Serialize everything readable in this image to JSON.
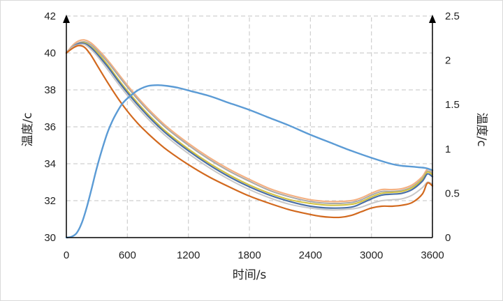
{
  "chart_data": {
    "type": "line",
    "title": "",
    "xlabel": "时间/s",
    "ylabel_left": "温度/c",
    "ylabel_right": "温度/c",
    "xlim": [
      0,
      3600
    ],
    "ylim_left": [
      30,
      42
    ],
    "ylim_right": [
      0,
      2.5
    ],
    "x_ticks": [
      0,
      600,
      1200,
      1800,
      2400,
      3000,
      3600
    ],
    "y_left_ticks": [
      30,
      32,
      34,
      36,
      38,
      40,
      42
    ],
    "y_right_ticks": [
      0,
      0.5,
      1,
      1.5,
      2,
      2.5
    ],
    "x_tick_labels": [
      "0",
      "600",
      "1200",
      "1800",
      "2400",
      "3000",
      "3600"
    ],
    "y_left_tick_labels": [
      "30",
      "32",
      "34",
      "36",
      "38",
      "40",
      "42"
    ],
    "y_right_tick_labels": [
      "0",
      "0.5",
      "1",
      "1.5",
      "2",
      "2.5"
    ],
    "grid": true,
    "grid_style": "dashed",
    "legend": false,
    "series": [
      {
        "axis": "left",
        "color": "#f4b183",
        "width": 2.2,
        "x": [
          0,
          60,
          120,
          180,
          240,
          300,
          400,
          500,
          600,
          700,
          800,
          900,
          1000,
          1200,
          1400,
          1600,
          1800,
          2000,
          2200,
          2400,
          2600,
          2800,
          2900,
          3000,
          3100,
          3200,
          3300,
          3400,
          3500,
          3550,
          3600
        ],
        "y": [
          40.0,
          40.4,
          40.65,
          40.7,
          40.55,
          40.25,
          39.65,
          38.95,
          38.25,
          37.6,
          37.0,
          36.45,
          35.95,
          35.1,
          34.35,
          33.7,
          33.15,
          32.65,
          32.3,
          32.05,
          31.95,
          32.0,
          32.15,
          32.4,
          32.6,
          32.6,
          32.65,
          32.85,
          33.3,
          33.7,
          33.6
        ]
      },
      {
        "axis": "left",
        "color": "#a9a9a9",
        "width": 2.0,
        "x": [
          0,
          60,
          120,
          180,
          240,
          300,
          400,
          500,
          600,
          700,
          800,
          900,
          1000,
          1200,
          1400,
          1600,
          1800,
          2000,
          2200,
          2400,
          2600,
          2800,
          2900,
          3000,
          3100,
          3200,
          3300,
          3400,
          3500,
          3550,
          3600
        ],
        "y": [
          40.0,
          40.35,
          40.55,
          40.6,
          40.45,
          40.15,
          39.55,
          38.85,
          38.15,
          37.5,
          36.9,
          36.35,
          35.85,
          35.0,
          34.25,
          33.6,
          33.05,
          32.55,
          32.2,
          31.95,
          31.85,
          31.9,
          32.05,
          32.3,
          32.5,
          32.5,
          32.55,
          32.75,
          33.2,
          33.6,
          33.5
        ]
      },
      {
        "axis": "left",
        "color": "#d4c23c",
        "width": 2.0,
        "x": [
          0,
          60,
          120,
          180,
          240,
          300,
          400,
          500,
          600,
          700,
          800,
          900,
          1000,
          1200,
          1400,
          1600,
          1800,
          2000,
          2200,
          2400,
          2600,
          2800,
          2900,
          3000,
          3100,
          3200,
          3300,
          3400,
          3500,
          3550,
          3600
        ],
        "y": [
          40.0,
          40.3,
          40.5,
          40.55,
          40.35,
          40.05,
          39.4,
          38.65,
          37.95,
          37.3,
          36.7,
          36.15,
          35.65,
          34.8,
          34.05,
          33.4,
          32.85,
          32.4,
          32.05,
          31.85,
          31.75,
          31.8,
          31.95,
          32.2,
          32.4,
          32.45,
          32.5,
          32.7,
          33.15,
          33.55,
          33.4
        ]
      },
      {
        "axis": "left",
        "color": "#4a6fa5",
        "width": 2.2,
        "x": [
          0,
          60,
          120,
          180,
          240,
          300,
          400,
          500,
          600,
          700,
          800,
          900,
          1000,
          1200,
          1400,
          1600,
          1800,
          2000,
          2200,
          2400,
          2600,
          2800,
          2900,
          3000,
          3100,
          3200,
          3300,
          3400,
          3500,
          3550,
          3600
        ],
        "y": [
          40.0,
          40.3,
          40.5,
          40.5,
          40.3,
          39.95,
          39.3,
          38.55,
          37.85,
          37.2,
          36.6,
          36.05,
          35.55,
          34.7,
          33.95,
          33.3,
          32.75,
          32.3,
          31.95,
          31.7,
          31.6,
          31.65,
          31.85,
          32.1,
          32.3,
          32.35,
          32.4,
          32.6,
          33.05,
          33.45,
          33.3
        ]
      },
      {
        "axis": "left",
        "color": "#c8c8c8",
        "width": 2.0,
        "x": [
          0,
          60,
          120,
          180,
          240,
          300,
          400,
          500,
          600,
          700,
          800,
          900,
          1000,
          1200,
          1400,
          1600,
          1800,
          2000,
          2200,
          2400,
          2600,
          2800,
          2900,
          3000,
          3100,
          3200,
          3300,
          3400,
          3500,
          3550,
          3600
        ],
        "y": [
          40.0,
          40.3,
          40.45,
          40.45,
          40.2,
          39.85,
          39.15,
          38.4,
          37.7,
          37.05,
          36.45,
          35.9,
          35.4,
          34.55,
          33.8,
          33.15,
          32.6,
          32.15,
          31.8,
          31.6,
          31.5,
          31.55,
          31.65,
          31.85,
          32.0,
          32.05,
          32.1,
          32.3,
          32.7,
          33.0,
          32.9
        ]
      },
      {
        "axis": "left",
        "color": "#d2691e",
        "width": 2.2,
        "x": [
          0,
          60,
          120,
          180,
          240,
          300,
          400,
          500,
          600,
          700,
          800,
          900,
          1000,
          1200,
          1400,
          1600,
          1800,
          2000,
          2200,
          2400,
          2500,
          2600,
          2700,
          2800,
          2900,
          3000,
          3100,
          3200,
          3300,
          3400,
          3500,
          3550,
          3600
        ],
        "y": [
          40.0,
          40.25,
          40.4,
          40.3,
          39.9,
          39.35,
          38.45,
          37.6,
          36.85,
          36.2,
          35.65,
          35.15,
          34.7,
          33.95,
          33.3,
          32.75,
          32.25,
          31.85,
          31.5,
          31.25,
          31.15,
          31.1,
          31.1,
          31.2,
          31.4,
          31.6,
          31.7,
          31.7,
          31.75,
          31.9,
          32.35,
          32.95,
          32.8
        ]
      },
      {
        "axis": "right",
        "color": "#5b9bd5",
        "width": 2.4,
        "x": [
          0,
          50,
          100,
          150,
          200,
          250,
          300,
          350,
          400,
          450,
          500,
          550,
          600,
          700,
          800,
          900,
          1000,
          1100,
          1200,
          1400,
          1600,
          1800,
          2000,
          2200,
          2400,
          2600,
          2800,
          3000,
          3200,
          3300,
          3400,
          3500,
          3550,
          3600
        ],
        "y": [
          0.0,
          0.01,
          0.05,
          0.16,
          0.34,
          0.56,
          0.79,
          0.99,
          1.17,
          1.31,
          1.42,
          1.51,
          1.57,
          1.66,
          1.71,
          1.72,
          1.71,
          1.69,
          1.66,
          1.6,
          1.52,
          1.44,
          1.35,
          1.26,
          1.16,
          1.07,
          0.98,
          0.9,
          0.83,
          0.81,
          0.8,
          0.79,
          0.78,
          0.76
        ]
      }
    ]
  }
}
